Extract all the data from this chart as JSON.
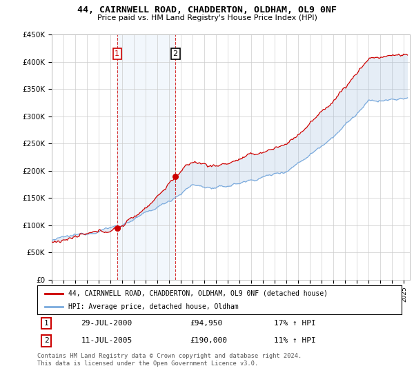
{
  "title": "44, CAIRNWELL ROAD, CHADDERTON, OLDHAM, OL9 0NF",
  "subtitle": "Price paid vs. HM Land Registry's House Price Index (HPI)",
  "ylim": [
    0,
    450000
  ],
  "yticks": [
    0,
    50000,
    100000,
    150000,
    200000,
    250000,
    300000,
    350000,
    400000,
    450000
  ],
  "ytick_labels": [
    "£0",
    "£50K",
    "£100K",
    "£150K",
    "£200K",
    "£250K",
    "£300K",
    "£350K",
    "£400K",
    "£450K"
  ],
  "property_color": "#cc0000",
  "hpi_color": "#7aaadd",
  "fill_color": "#c8d8ee",
  "transaction1_date_x": 2000.57,
  "transaction1_price": 94950,
  "transaction2_date_x": 2005.53,
  "transaction2_price": 190000,
  "vline1_x": 2000.57,
  "vline2_x": 2005.53,
  "legend_property": "44, CAIRNWELL ROAD, CHADDERTON, OLDHAM, OL9 0NF (detached house)",
  "legend_hpi": "HPI: Average price, detached house, Oldham",
  "annotation1_date": "29-JUL-2000",
  "annotation1_price": "£94,950",
  "annotation1_hpi": "17% ↑ HPI",
  "annotation2_date": "11-JUL-2005",
  "annotation2_price": "£190,000",
  "annotation2_hpi": "11% ↑ HPI",
  "footer": "Contains HM Land Registry data © Crown copyright and database right 2024.\nThis data is licensed under the Open Government Licence v3.0.",
  "xmin": 1995,
  "xmax": 2025.5
}
